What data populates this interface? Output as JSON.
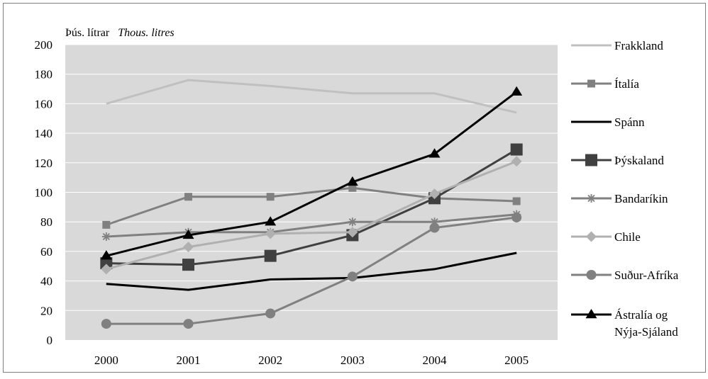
{
  "chart_data": {
    "type": "line",
    "unit_label": {
      "primary": "Þús. lítrar",
      "secondary": "Thous. litres"
    },
    "categories": [
      "2000",
      "2001",
      "2002",
      "2003",
      "2004",
      "2005"
    ],
    "ylim": [
      0,
      200
    ],
    "yticks": [
      "0",
      "20",
      "40",
      "60",
      "80",
      "100",
      "120",
      "140",
      "160",
      "180",
      "200"
    ],
    "grid": true,
    "legend_position": "right",
    "series": [
      {
        "name": "Frakkland",
        "values": [
          160,
          176,
          172,
          167,
          167,
          154
        ],
        "color": "#c0c0c0",
        "marker": "none",
        "width": 3
      },
      {
        "name": "Ítalía",
        "values": [
          78,
          97,
          97,
          103,
          96,
          94
        ],
        "color": "#808080",
        "marker": "square-small",
        "width": 3
      },
      {
        "name": "Spánn",
        "values": [
          38,
          34,
          41,
          42,
          48,
          59
        ],
        "color": "#000000",
        "marker": "none",
        "width": 3
      },
      {
        "name": "Þýskaland",
        "values": [
          52,
          51,
          57,
          71,
          96,
          129
        ],
        "color": "#404040",
        "marker": "square-big",
        "width": 3
      },
      {
        "name": "Bandaríkin",
        "values": [
          70,
          73,
          73,
          80,
          80,
          85
        ],
        "color": "#808080",
        "marker": "star",
        "width": 3
      },
      {
        "name": "Chile",
        "values": [
          48,
          63,
          72,
          73,
          99,
          121
        ],
        "color": "#b0b0b0",
        "marker": "diamond",
        "width": 3
      },
      {
        "name": "Suður-Afríka",
        "values": [
          11,
          11,
          18,
          43,
          76,
          83
        ],
        "color": "#808080",
        "marker": "circle",
        "width": 3
      },
      {
        "name": "Ástralía og Nýja-Sjáland",
        "legend_lines": [
          "Ástralía og",
          "Nýja-Sjáland"
        ],
        "values": [
          57,
          71,
          80,
          107,
          126,
          168
        ],
        "color": "#000000",
        "marker": "triangle",
        "width": 3
      }
    ]
  }
}
